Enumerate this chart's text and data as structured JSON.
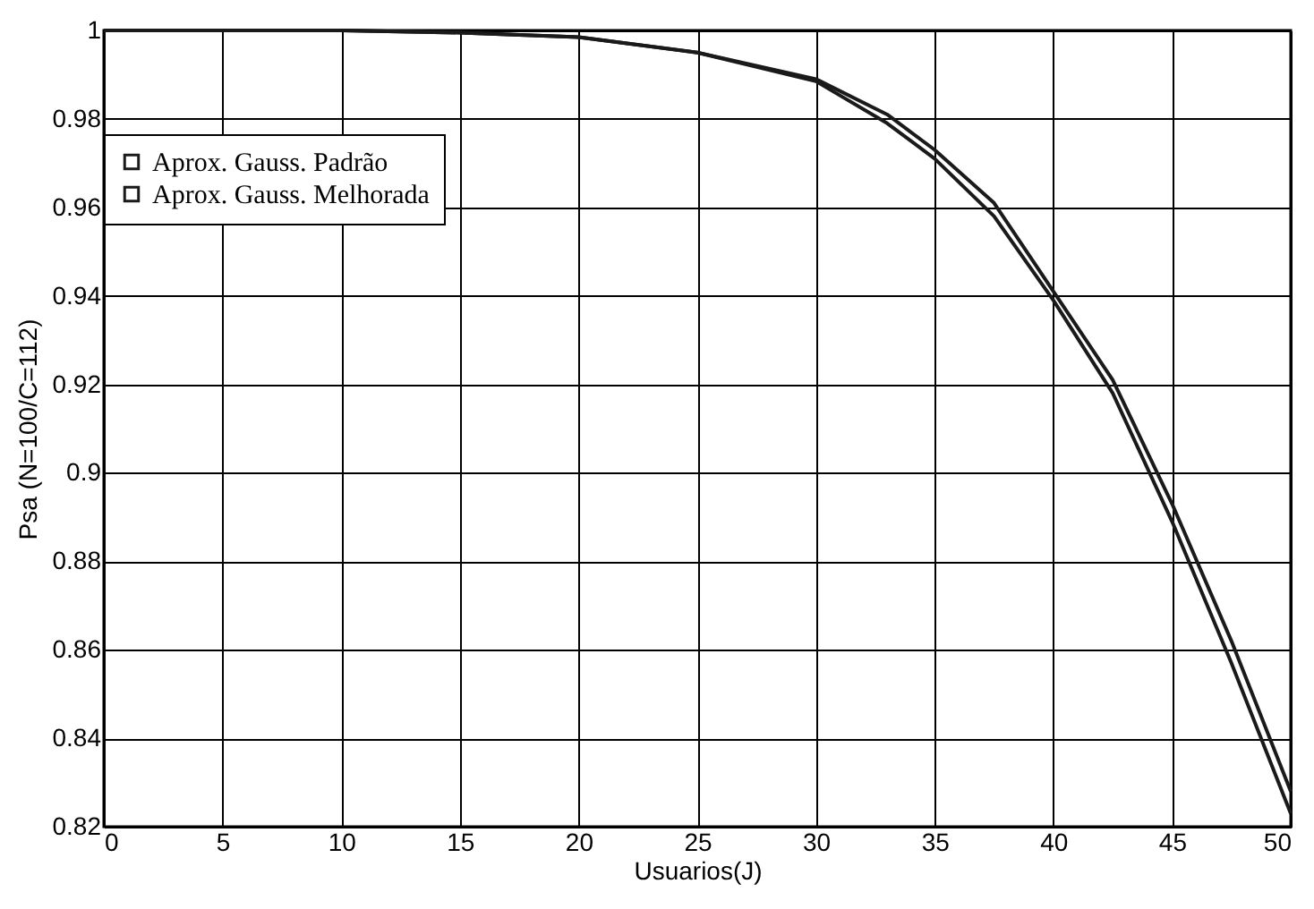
{
  "chart_data": {
    "type": "line",
    "xlabel": "Usuarios(J)",
    "ylabel": "Psa (N=100/C=112)",
    "x": [
      0,
      5,
      10,
      15,
      20,
      25,
      30,
      33,
      35,
      37.5,
      40,
      42.5,
      45,
      47.5,
      50
    ],
    "series": [
      {
        "name": "Aprox. Gauss. Padrão",
        "color": "#1a1a1a",
        "values": [
          1,
          1,
          1,
          0.9995,
          0.9985,
          0.995,
          0.9885,
          0.979,
          0.971,
          0.958,
          0.939,
          0.918,
          0.889,
          0.857,
          0.823
        ]
      },
      {
        "name": "Aprox. Gauss. Melhorada",
        "color": "#1a1a1a",
        "values": [
          1,
          1,
          1,
          0.9995,
          0.9985,
          0.995,
          0.989,
          0.981,
          0.973,
          0.961,
          0.941,
          0.921,
          0.893,
          0.862,
          0.828
        ]
      }
    ],
    "xlim": [
      0,
      50
    ],
    "xticks": [
      0,
      5,
      10,
      15,
      20,
      25,
      30,
      35,
      40,
      45,
      50
    ],
    "ylim": [
      0.82,
      1
    ],
    "yticks": [
      0.82,
      0.84,
      0.86,
      0.88,
      0.9,
      0.92,
      0.94,
      0.96,
      0.98,
      1
    ],
    "grid": true,
    "legend": "top left",
    "marker": "none",
    "line_style": "solid"
  }
}
